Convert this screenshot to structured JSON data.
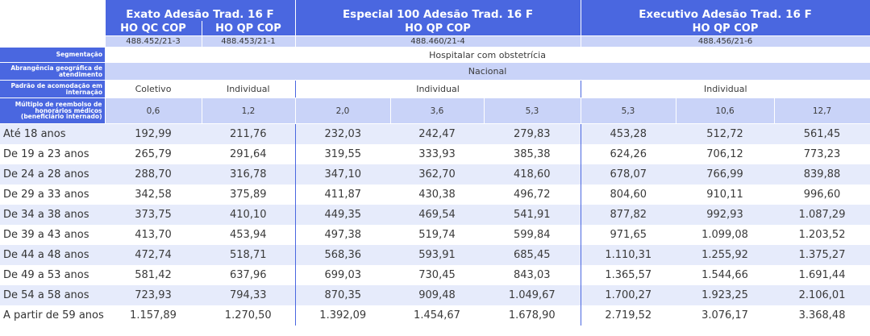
{
  "plans": [
    {
      "name": "Exato Adesão Trad. 16 F"
    },
    {
      "name": "Especial 100 Adesão Trad. 16 F"
    },
    {
      "name": "Executivo Adesão Trad. 16 F"
    }
  ],
  "codes": [
    "HO QC COP",
    "HO QP COP",
    "HO QP COP",
    "HO QP COP"
  ],
  "registrations": [
    "488.452/21-3",
    "488.453/21-1",
    "488.460/21-4",
    "488.456/21-6"
  ],
  "attributes": {
    "segmentacao": {
      "label": "Segmentação",
      "value": "Hospitalar com obstetrícia"
    },
    "abrangencia": {
      "label": "Abrangência geográfica de atendimento",
      "value": "Nacional"
    },
    "acomodacao": {
      "label": "Padrão de acomodação em internação",
      "values": [
        "Coletivo",
        "Individual",
        "Individual",
        "Individual"
      ]
    },
    "multiplo": {
      "label": "Múltiplo de reembolso de honorários médicos (beneficiário internado)",
      "values": [
        "0,6",
        "1,2",
        "2,0",
        "3,6",
        "5,3",
        "5,3",
        "10,6",
        "12,7"
      ]
    }
  },
  "price_rows": [
    {
      "age": "Até 18 anos",
      "values": [
        "192,99",
        "211,76",
        "232,03",
        "242,47",
        "279,83",
        "453,28",
        "512,72",
        "561,45"
      ]
    },
    {
      "age": "De 19 a 23 anos",
      "values": [
        "265,79",
        "291,64",
        "319,55",
        "333,93",
        "385,38",
        "624,26",
        "706,12",
        "773,23"
      ]
    },
    {
      "age": "De 24 a 28 anos",
      "values": [
        "288,70",
        "316,78",
        "347,10",
        "362,70",
        "418,60",
        "678,07",
        "766,99",
        "839,88"
      ]
    },
    {
      "age": "De 29 a 33 anos",
      "values": [
        "342,58",
        "375,89",
        "411,87",
        "430,38",
        "496,72",
        "804,60",
        "910,11",
        "996,60"
      ]
    },
    {
      "age": "De 34 a 38 anos",
      "values": [
        "373,75",
        "410,10",
        "449,35",
        "469,54",
        "541,91",
        "877,82",
        "992,93",
        "1.087,29"
      ]
    },
    {
      "age": "De 39 a 43 anos",
      "values": [
        "413,70",
        "453,94",
        "497,38",
        "519,74",
        "599,84",
        "971,65",
        "1.099,08",
        "1.203,52"
      ]
    },
    {
      "age": "De 44 a 48 anos",
      "values": [
        "472,74",
        "518,71",
        "568,36",
        "593,91",
        "685,45",
        "1.110,31",
        "1.255,92",
        "1.375,27"
      ]
    },
    {
      "age": "De 49 a 53 anos",
      "values": [
        "581,42",
        "637,96",
        "699,03",
        "730,45",
        "843,03",
        "1.365,57",
        "1.544,66",
        "1.691,44"
      ]
    },
    {
      "age": "De 54 a 58 anos",
      "values": [
        "723,93",
        "794,33",
        "870,35",
        "909,48",
        "1.049,67",
        "1.700,27",
        "1.923,25",
        "2.106,01"
      ]
    },
    {
      "age": "A partir de 59 anos",
      "values": [
        "1.157,89",
        "1.270,50",
        "1.392,09",
        "1.454,67",
        "1.678,90",
        "2.719,52",
        "3.076,17",
        "3.368,48"
      ]
    }
  ],
  "colors": {
    "header_blue": "#4a67e0",
    "light_band": "#c9d3f8",
    "alt_row": "#e6ebfb"
  }
}
